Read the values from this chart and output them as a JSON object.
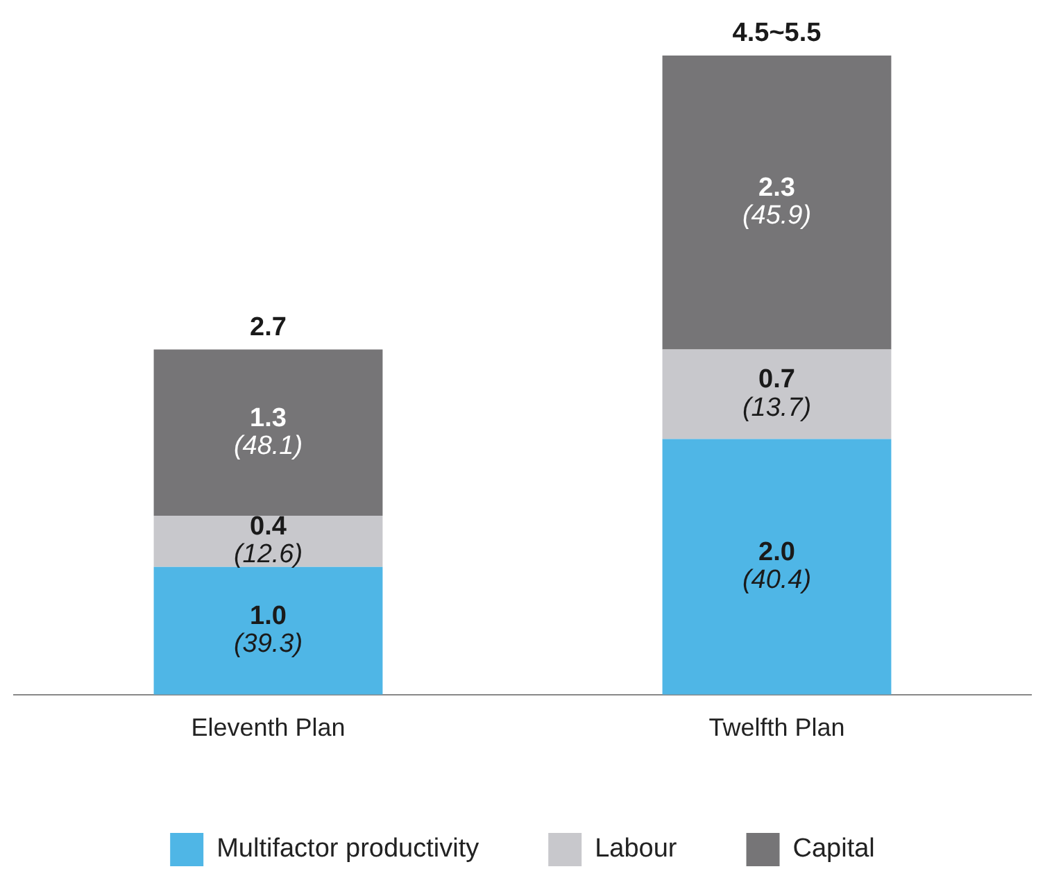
{
  "chart_data": {
    "type": "bar",
    "stacked": true,
    "categories": [
      "Eleventh Plan",
      "Twelfth Plan"
    ],
    "series": [
      {
        "name": "Multifactor productivity",
        "color": "#4fb6e6",
        "values": [
          1.0,
          2.0
        ],
        "value_labels": [
          "1.0\n(39.3)",
          "2.0\n(40.4)"
        ]
      },
      {
        "name": "Labour",
        "color": "#c8c8cc",
        "values": [
          0.4,
          0.7
        ],
        "value_labels": [
          "0.4\n(12.6)",
          "0.7\n(13.7)"
        ]
      },
      {
        "name": "Capital",
        "color": "#767577",
        "values": [
          1.3,
          2.3
        ],
        "value_labels": [
          "1.3\n(48.1)",
          "2.3\n(45.9)"
        ]
      }
    ],
    "totals": [
      "2.7",
      "4.5~5.5"
    ],
    "legend": "bottom",
    "grid": false
  }
}
